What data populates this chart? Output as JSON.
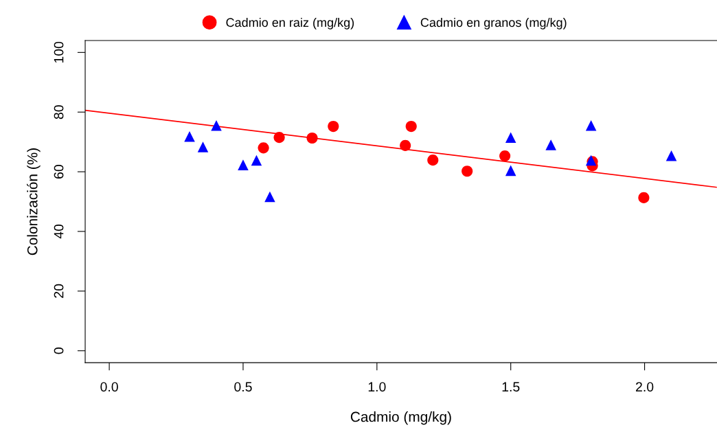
{
  "chart_data": {
    "type": "scatter",
    "xlabel": "Cadmio (mg/kg)",
    "ylabel": "Colonización (%)",
    "xlim": [
      -0.09,
      2.27
    ],
    "xticks": [
      {
        "value": 0,
        "label": "0.0"
      },
      0.5,
      {
        "value": 1,
        "label": "1.0"
      },
      1.5,
      {
        "value": 2,
        "label": "2.0"
      }
    ],
    "ylim": [
      -4,
      104
    ],
    "yticks": [
      0,
      20,
      40,
      60,
      80,
      100
    ],
    "grid": false,
    "legend": "top",
    "series": [
      {
        "name": "Cadmio en raiz (mg/kg)",
        "color": "#ff0000",
        "marker": "circle",
        "x": [
          0.576,
          0.635,
          0.758,
          0.837,
          1.106,
          1.128,
          1.209,
          1.337,
          1.478,
          1.805,
          1.805,
          1.997
        ],
        "values": [
          68.0,
          71.5,
          71.3,
          75.2,
          68.8,
          75.2,
          63.9,
          60.2,
          65.3,
          63.4,
          62.0,
          51.3
        ]
      },
      {
        "name": "Cadmio en granos (mg/kg)",
        "color": "#0000ff",
        "marker": "triangle",
        "x": [
          0.3,
          0.35,
          0.4,
          0.5,
          0.55,
          0.6,
          1.5,
          1.5,
          1.65,
          1.8,
          1.8,
          2.1
        ],
        "values": [
          71.8,
          68.3,
          75.5,
          62.3,
          63.8,
          51.6,
          71.5,
          60.4,
          69.0,
          75.5,
          63.8,
          65.4
        ]
      },
      {
        "type": "line",
        "color": "#ff0000",
        "x": [
          -0.09,
          2.27
        ],
        "values": [
          80.6,
          54.8
        ]
      }
    ]
  }
}
